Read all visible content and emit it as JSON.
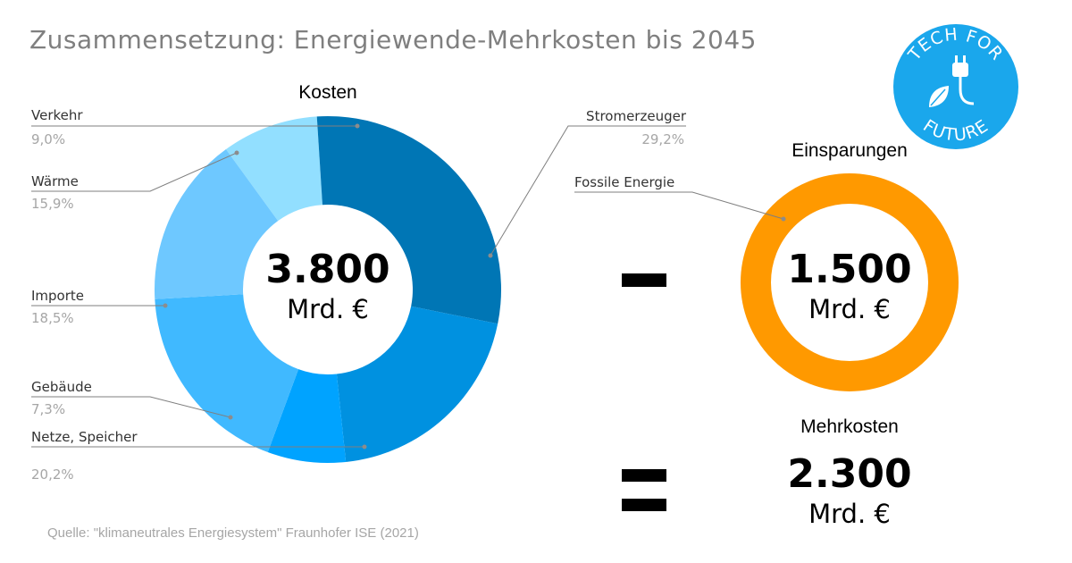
{
  "title": "Zusammensetzung: Energiewende-Mehrkosten bis 2045",
  "source": "Quelle: \"klimaneutrales Energiesystem\" Fraunhofer ISE (2021)",
  "logo": {
    "text_top": "TECH FOR",
    "text_bottom": "FUTURE",
    "icon": "plug-leaf-icon",
    "color": "#1aa7ec"
  },
  "minus_sign": "-",
  "equals_sign": "=",
  "colors": {
    "orange": "#ff9900"
  },
  "chart_data": [
    {
      "type": "pie",
      "title": "Kosten",
      "center_value": "3.800",
      "center_unit": "Mrd. €",
      "slices": [
        {
          "label": "Verkehr",
          "value": 9.0,
          "value_label": "9,0%",
          "color": "#92dfff"
        },
        {
          "label": "Stromerzeuger",
          "value": 29.2,
          "value_label": "29,2%",
          "color": "#0076b5"
        },
        {
          "label": "Netze, Speicher",
          "value": 20.2,
          "value_label": "20,2%",
          "color": "#0091e0"
        },
        {
          "label": "Gebäude",
          "value": 7.3,
          "value_label": "7,3%",
          "color": "#00a3ff"
        },
        {
          "label": "Importe",
          "value": 18.5,
          "value_label": "18,5%",
          "color": "#40b9ff"
        },
        {
          "label": "Wärme",
          "value": 15.9,
          "value_label": "15,9%",
          "color": "#6ec8ff"
        }
      ]
    },
    {
      "type": "pie",
      "title": "Einsparungen",
      "center_value": "1.500",
      "center_unit": "Mrd. €",
      "slices": [
        {
          "label": "Fossile Energie",
          "value": 100,
          "color": "#ff9900"
        }
      ]
    },
    {
      "type": "table",
      "title": "Mehrkosten",
      "value": "2.300",
      "unit": "Mrd. €"
    }
  ]
}
